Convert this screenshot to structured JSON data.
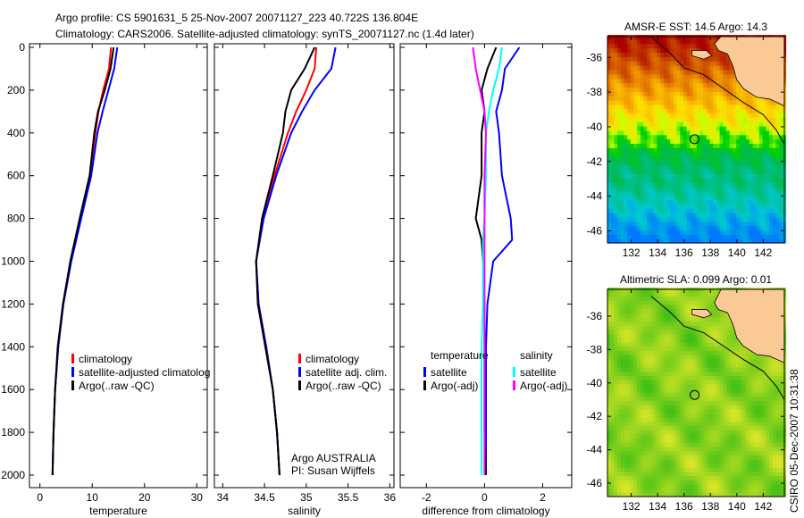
{
  "title_line1": "Argo profile: CS 5901631_5 25-Nov-2007 20071127_223 40.722S 136.804E",
  "title_line2": "Climatology: CARS2006. Satellite-adjusted climatology: synTS_20071127.nc (1.4d later)",
  "footer_stamp": "CSIRO 05-Dec-2007 10:31:38",
  "colors": {
    "climatology": "#ff0000",
    "satellite": "#0000ff",
    "argo": "#000000",
    "sal_satellite": "#00ffff",
    "sal_argo": "#ff00ff"
  },
  "chart_data": [
    {
      "type": "line",
      "xlabel": "temperature",
      "ylabel": "",
      "xlim": [
        -2,
        32
      ],
      "ylim": [
        2000,
        0
      ],
      "xticks": [
        "0",
        "10",
        "20",
        "30"
      ],
      "yticks": [
        "0",
        "200",
        "400",
        "600",
        "800",
        "1000",
        "1200",
        "1400",
        "1600",
        "1800",
        "2000"
      ],
      "depth": [
        0,
        100,
        200,
        300,
        400,
        600,
        800,
        1000,
        1200,
        1400,
        1600,
        1800,
        2000
      ],
      "legend": [
        "climatology",
        "satellite-adjusted climatolog",
        "Argo(..raw -QC)"
      ],
      "series": [
        {
          "name": "climatology",
          "values": [
            13.6,
            13.2,
            12.1,
            11.2,
            10.6,
            9.6,
            7.8,
            5.9,
            4.4,
            3.5,
            2.9,
            2.6,
            2.4
          ]
        },
        {
          "name": "satellite-adjusted climatology",
          "values": [
            14.8,
            14.2,
            13.1,
            12,
            11,
            9.8,
            7.9,
            6,
            4.5,
            3.5,
            2.9,
            2.6,
            2.4
          ]
        },
        {
          "name": "Argo(..raw -QC)",
          "values": [
            14.1,
            13.5,
            12.4,
            11.1,
            10.4,
            9.5,
            7.6,
            5.8,
            4.4,
            3.4,
            2.9,
            2.6,
            2.4
          ]
        }
      ]
    },
    {
      "type": "line",
      "xlabel": "salinity",
      "xlim": [
        33.9,
        36.05
      ],
      "ylim": [
        2000,
        0
      ],
      "xticks": [
        "34",
        "34.5",
        "35",
        "35.5",
        "36"
      ],
      "depth": [
        0,
        100,
        200,
        300,
        400,
        600,
        800,
        1000,
        1200,
        1400,
        1600,
        1800,
        2000
      ],
      "legend": [
        "climatology",
        "satellite adj. clim.",
        "Argo(..raw -QC)"
      ],
      "annotation": [
        "Argo AUSTRALIA",
        "PI: Susan Wijffels"
      ],
      "series": [
        {
          "name": "climatology",
          "values": [
            35.12,
            35.1,
            35.0,
            34.88,
            34.78,
            34.62,
            34.48,
            34.4,
            34.43,
            34.52,
            34.6,
            34.65,
            34.68
          ]
        },
        {
          "name": "satellite adj. clim.",
          "values": [
            35.35,
            35.3,
            35.1,
            34.95,
            34.82,
            34.64,
            34.49,
            34.4,
            34.43,
            34.52,
            34.6,
            34.65,
            34.68
          ]
        },
        {
          "name": "Argo(..raw -QC)",
          "values": [
            35.1,
            34.98,
            34.82,
            34.75,
            34.72,
            34.6,
            34.47,
            34.4,
            34.42,
            34.51,
            34.6,
            34.65,
            34.68
          ]
        }
      ]
    },
    {
      "type": "line",
      "xlabel": "difference from climatology",
      "xlim": [
        -2.9,
        3.0
      ],
      "ylim": [
        2000,
        0
      ],
      "xticks": [
        "-2",
        "0",
        "2"
      ],
      "depth": [
        0,
        100,
        200,
        300,
        400,
        600,
        800,
        900,
        1000,
        1200,
        1400,
        1600,
        1800,
        2000
      ],
      "legend_headers": [
        "temperature",
        "salinity"
      ],
      "legend": [
        "satellite",
        "Argo(-adj)",
        "satellite",
        "Argo(-adj)"
      ],
      "series": [
        {
          "name": "temperature satellite",
          "values": [
            1.2,
            0.7,
            0.6,
            0.4,
            0.5,
            0.6,
            0.9,
            0.95,
            0.3,
            0.1,
            0.05,
            0.05,
            0.05,
            0.05
          ]
        },
        {
          "name": "temperature Argo(-adj)",
          "values": [
            0.4,
            0.1,
            -0.1,
            0.0,
            -0.1,
            -0.1,
            -0.3,
            -0.1,
            -0.05,
            0.0,
            0.0,
            0.0,
            0.0,
            0.05
          ]
        },
        {
          "name": "salinity satellite",
          "values": [
            0.6,
            0.5,
            0.3,
            0.15,
            0.05,
            0.05,
            0.0,
            -0.05,
            -0.05,
            -0.05,
            -0.1,
            -0.1,
            -0.1,
            -0.1
          ]
        },
        {
          "name": "salinity Argo(-adj)",
          "values": [
            -0.4,
            -0.3,
            -0.15,
            0.0,
            0.05,
            0.0,
            0.0,
            0.0,
            0.0,
            0.0,
            0.0,
            0.0,
            0.0,
            0.0
          ]
        }
      ]
    },
    {
      "type": "heatmap",
      "title": "AMSR-E SST: 14.5 Argo: 14.3",
      "xlim": [
        130.2,
        143.6
      ],
      "ylim": [
        -46.7,
        -34.8
      ],
      "xticks": [
        "132",
        "134",
        "136",
        "138",
        "140",
        "142"
      ],
      "yticks": [
        "-36",
        "-38",
        "-40",
        "-42",
        "-44",
        "-46"
      ],
      "marker": [
        136.8,
        -40.72
      ]
    },
    {
      "type": "heatmap",
      "title": "Altimetric SLA: 0.099 Argo: 0.01",
      "xlim": [
        130.2,
        143.6
      ],
      "ylim": [
        -46.8,
        -34.4
      ],
      "xticks": [
        "132",
        "134",
        "136",
        "138",
        "140",
        "142"
      ],
      "yticks": [
        "-36",
        "-38",
        "-40",
        "-42",
        "-44",
        "-46"
      ],
      "marker": [
        136.8,
        -40.72
      ]
    }
  ]
}
